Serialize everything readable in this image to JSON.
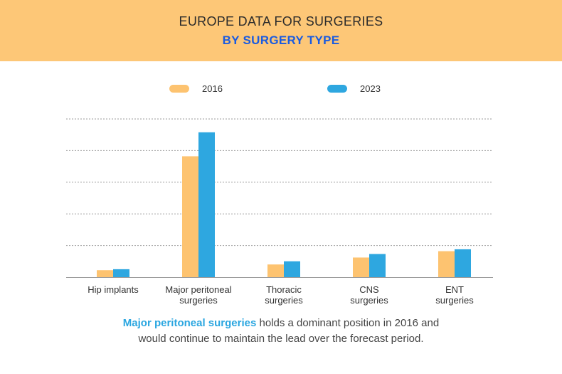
{
  "header": {
    "title": "EUROPE DATA FOR SURGERIES",
    "subtitle": "BY SURGERY TYPE"
  },
  "colors": {
    "header_bg": "#FDC777",
    "subtitle": "#1A5BE0",
    "series_2016": "#FDC370",
    "series_2023": "#2EA7E0",
    "highlight_text": "#2AA6E0"
  },
  "chart_data": {
    "type": "bar",
    "categories": [
      "Hip implants",
      "Major peritoneal surgeries",
      "Thoracic surgeries",
      "CNS surgeries",
      "ENT surgeries"
    ],
    "category_lines": [
      [
        "Hip implants"
      ],
      [
        "Major peritoneal",
        "surgeries"
      ],
      [
        "Thoracic",
        "surgeries"
      ],
      [
        "CNS",
        "surgeries"
      ],
      [
        "ENT",
        "surgeries"
      ]
    ],
    "series": [
      {
        "name": "2016",
        "values": [
          0.22,
          3.82,
          0.4,
          0.62,
          0.82
        ]
      },
      {
        "name": "2023",
        "values": [
          0.25,
          4.58,
          0.5,
          0.73,
          0.88
        ]
      }
    ],
    "ylim": [
      0,
      5
    ],
    "grid": true,
    "legend": "top"
  },
  "caption": {
    "highlight": "Major peritoneal surgeries",
    "line1_rest": " holds a dominant position in 2016 and",
    "line2": "would continue to maintain the lead over the forecast period."
  }
}
